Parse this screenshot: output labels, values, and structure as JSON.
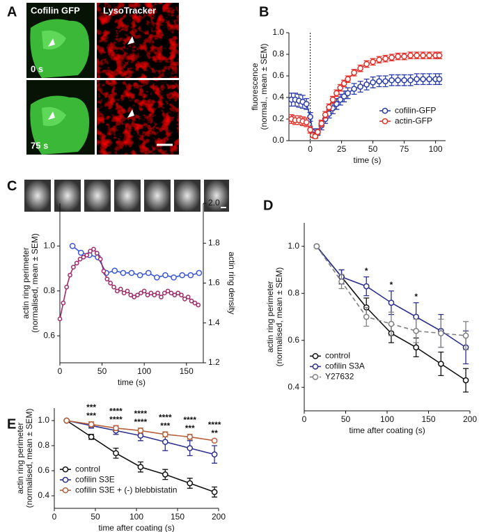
{
  "panel_a": {
    "panel": "A",
    "titles": [
      "Cofilin GFP",
      "LysoTracker"
    ],
    "times": [
      "0 s",
      "75 s"
    ]
  },
  "chart_data": [
    {
      "type": "line",
      "panel": "B",
      "xlabel": "time (s)",
      "ylabel": [
        "fluorescence",
        "(normal., mean ± SEM)"
      ],
      "x": [
        -15,
        -12,
        -9,
        -6,
        -3,
        0,
        2,
        4,
        6,
        9,
        12,
        15,
        18,
        21,
        24,
        27,
        30,
        35,
        40,
        45,
        50,
        55,
        60,
        65,
        70,
        75,
        80,
        85,
        90,
        95,
        100,
        103
      ],
      "series": [
        {
          "name": "cofilin-GFP",
          "color": "#2a3aa8",
          "values": [
            0.38,
            0.38,
            0.37,
            0.36,
            0.34,
            0.22,
            0.08,
            0.05,
            0.08,
            0.14,
            0.2,
            0.25,
            0.3,
            0.34,
            0.38,
            0.41,
            0.44,
            0.48,
            0.5,
            0.52,
            0.54,
            0.55,
            0.55,
            0.56,
            0.56,
            0.56,
            0.56,
            0.57,
            0.57,
            0.57,
            0.57,
            0.57
          ],
          "errors": [
            0.06,
            0.06,
            0.06,
            0.06,
            0.05,
            0.04,
            0.03,
            0.03,
            0.03,
            0.04,
            0.04,
            0.04,
            0.05,
            0.05,
            0.05,
            0.05,
            0.05,
            0.05,
            0.05,
            0.05,
            0.05,
            0.05,
            0.05,
            0.05,
            0.05,
            0.05,
            0.05,
            0.05,
            0.05,
            0.05,
            0.05,
            0.05
          ]
        },
        {
          "name": "actin-GFP",
          "color": "#e0302a",
          "values": [
            0.2,
            0.19,
            0.19,
            0.18,
            0.17,
            0.1,
            0.05,
            0.04,
            0.08,
            0.16,
            0.24,
            0.31,
            0.38,
            0.44,
            0.49,
            0.53,
            0.57,
            0.63,
            0.67,
            0.71,
            0.73,
            0.75,
            0.76,
            0.77,
            0.78,
            0.78,
            0.79,
            0.79,
            0.79,
            0.79,
            0.79,
            0.79
          ],
          "errors": [
            0.04,
            0.04,
            0.04,
            0.04,
            0.04,
            0.03,
            0.02,
            0.02,
            0.02,
            0.03,
            0.03,
            0.03,
            0.03,
            0.03,
            0.03,
            0.03,
            0.03,
            0.03,
            0.03,
            0.03,
            0.03,
            0.03,
            0.03,
            0.03,
            0.03,
            0.03,
            0.03,
            0.03,
            0.03,
            0.03,
            0.03,
            0.03
          ]
        }
      ],
      "xlim": [
        -17,
        108
      ],
      "xticks": [
        0,
        25,
        50,
        75,
        100
      ],
      "ylim": [
        0,
        1
      ],
      "yticks": [
        {
          "value": 0,
          "label": "0.0"
        },
        0.2,
        0.4,
        0.6,
        0.8,
        {
          "value": 1,
          "label": "1.0"
        }
      ],
      "vline": 0,
      "legend": "lower right",
      "grid": false
    },
    {
      "type": "line",
      "panel": "C",
      "xlabel": "time (s)",
      "ylabel": [
        "actin ring perimeter",
        "(normalised, mean ± SEM)"
      ],
      "ylabel_color": "#3b57d6",
      "y2label": "actin ring density",
      "y2label_color": "#9e2a68",
      "series": [
        {
          "color": "#3b57d6",
          "x": [
            15,
            25,
            35,
            45,
            55,
            65,
            75,
            85,
            95,
            105,
            115,
            125,
            135,
            145,
            155,
            165
          ],
          "values": [
            1,
            0.97,
            0.96,
            0.95,
            0.88,
            0.89,
            0.88,
            0.88,
            0.87,
            0.88,
            0.86,
            0.87,
            0.86,
            0.87,
            0.87,
            0.88
          ]
        },
        {
          "color": "#9e2a68",
          "axis": "y2",
          "x": [
            0,
            4,
            8,
            12,
            16,
            20,
            24,
            28,
            32,
            36,
            40,
            44,
            48,
            52,
            56,
            60,
            64,
            68,
            72,
            76,
            80,
            84,
            88,
            92,
            96,
            100,
            104,
            108,
            112,
            116,
            120,
            124,
            128,
            132,
            136,
            140,
            144,
            148,
            152,
            156,
            160,
            164
          ],
          "values": [
            1.42,
            1.5,
            1.58,
            1.64,
            1.68,
            1.7,
            1.72,
            1.73,
            1.74,
            1.76,
            1.77,
            1.75,
            1.72,
            1.66,
            1.62,
            1.6,
            1.58,
            1.56,
            1.57,
            1.55,
            1.56,
            1.54,
            1.53,
            1.54,
            1.55,
            1.56,
            1.54,
            1.55,
            1.54,
            1.55,
            1.53,
            1.55,
            1.56,
            1.55,
            1.54,
            1.55,
            1.54,
            1.52,
            1.53,
            1.51,
            1.5,
            1.49
          ]
        }
      ],
      "xlim": [
        0,
        170
      ],
      "xticks": [
        0,
        50,
        100,
        150
      ],
      "ylim": [
        0.48,
        1.19
      ],
      "yticks": [
        0.6,
        0.8,
        {
          "value": 1,
          "label": "1.0"
        }
      ],
      "y2lim": [
        1.2,
        2
      ],
      "y2ticks": [
        1.2,
        1.4,
        1.6,
        1.8,
        {
          "value": 2,
          "label": "2.0"
        }
      ],
      "grid": false
    },
    {
      "type": "line",
      "panel": "D",
      "xlabel": "time after coating (s)",
      "ylabel": [
        "actin ring perimeter",
        "(normalised, mean ± SEM)"
      ],
      "x": [
        15,
        45,
        75,
        105,
        135,
        165,
        195
      ],
      "series": [
        {
          "name": "control",
          "color": "#111111",
          "values": [
            1,
            0.87,
            0.74,
            0.63,
            0.57,
            0.5,
            0.43
          ],
          "errors": [
            0,
            0.03,
            0.04,
            0.04,
            0.04,
            0.05,
            0.05
          ]
        },
        {
          "name": "cofilin S3A",
          "color": "#2c2f8c",
          "values": [
            1,
            0.87,
            0.83,
            0.76,
            0.7,
            0.64,
            0.57
          ],
          "errors": [
            0,
            0.03,
            0.04,
            0.05,
            0.06,
            0.07,
            0.07
          ],
          "significance": [
            null,
            null,
            "*",
            "*",
            "*",
            null,
            null
          ]
        },
        {
          "name": "Y27632",
          "color": "#808080",
          "dash": true,
          "values": [
            1,
            0.85,
            0.7,
            0.67,
            0.64,
            0.63,
            0.62
          ],
          "errors": [
            0,
            0.03,
            0.04,
            0.05,
            0.05,
            0.06,
            0.06
          ]
        }
      ],
      "xlim": [
        0,
        200
      ],
      "xticks": [
        0,
        50,
        100,
        150,
        200
      ],
      "ylim": [
        0.3,
        1.1
      ],
      "yticks": [
        0.4,
        0.6,
        0.8,
        {
          "value": 1,
          "label": "1.0"
        }
      ],
      "legend": "lower left",
      "grid": false
    },
    {
      "type": "line",
      "panel": "E",
      "xlabel": "time after coating (s)",
      "ylabel": [
        "actin ring perimeter",
        "(normalised, mean ± SEM)"
      ],
      "x": [
        15,
        45,
        75,
        105,
        135,
        165,
        195
      ],
      "series": [
        {
          "name": "control",
          "color": "#111111",
          "values": [
            1,
            0.87,
            0.74,
            0.63,
            0.57,
            0.5,
            0.43
          ],
          "errors": [
            0,
            0.02,
            0.04,
            0.04,
            0.04,
            0.04,
            0.04
          ]
        },
        {
          "name": "cofilin S3E",
          "color": "#2c2f8c",
          "values": [
            1,
            0.96,
            0.92,
            0.88,
            0.83,
            0.78,
            0.73
          ],
          "errors": [
            0,
            0.02,
            0.03,
            0.04,
            0.07,
            0.06,
            0.07
          ],
          "significance": [
            null,
            "***",
            "****",
            "****",
            "***",
            "***",
            "**"
          ]
        },
        {
          "name": "cofilin S3E + (-) blebbistatin",
          "color": "#b5623c",
          "values": [
            1,
            0.97,
            0.94,
            0.92,
            0.89,
            0.87,
            0.84
          ],
          "errors": [
            0,
            0.02,
            0.02,
            0.02,
            0.02,
            0.02,
            0.01
          ],
          "significance": [
            null,
            "***",
            "****",
            "****",
            "****",
            "****",
            "****"
          ]
        }
      ],
      "xlim": [
        0,
        200
      ],
      "xticks": [
        0,
        50,
        100,
        150,
        200
      ],
      "ylim": [
        0.3,
        1.1
      ],
      "yticks": [
        0.4,
        0.6,
        0.8,
        {
          "value": 1,
          "label": "1.0"
        }
      ],
      "legend": "lower left",
      "grid": false
    }
  ]
}
